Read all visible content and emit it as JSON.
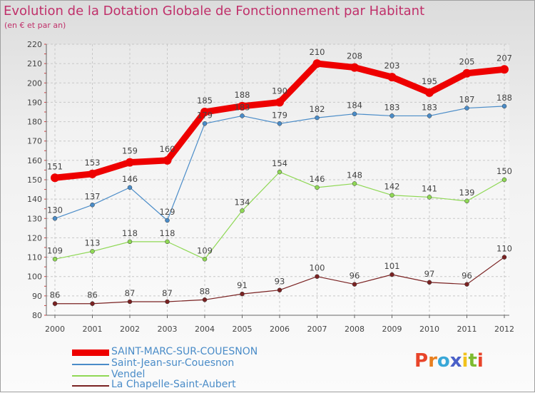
{
  "title": "Evolution de la Dotation Globale de Fonctionnement par Habitant",
  "subtitle": "(en € et par an)",
  "logo": {
    "text": "Proxiti",
    "letter_colors": [
      "#e8442a",
      "#e87f1f",
      "#39a8d8",
      "#4a60c8",
      "#f1c21b",
      "#7dbb2f",
      "#e8442a"
    ]
  },
  "chart_data": {
    "type": "line",
    "title": "Evolution de la Dotation Globale de Fonctionnement par Habitant",
    "subtitle": "(en € et par an)",
    "xlabel": "",
    "ylabel": "",
    "ylim": [
      80,
      220
    ],
    "yticks": [
      80,
      90,
      100,
      110,
      120,
      130,
      140,
      150,
      160,
      170,
      180,
      190,
      200,
      210,
      220
    ],
    "grid": true,
    "x": [
      "2000",
      "2001",
      "2002",
      "2003",
      "2004",
      "2005",
      "2006",
      "2007",
      "2008",
      "2009",
      "2010",
      "2011",
      "2012"
    ],
    "series": [
      {
        "name": "SAINT-MARC-SUR-COUESNON",
        "color": "#ee0000",
        "values": [
          151,
          153,
          159,
          160,
          185,
          188,
          190,
          210,
          208,
          203,
          195,
          205,
          207
        ]
      },
      {
        "name": "Saint-Jean-sur-Couesnon",
        "color": "#4a8cc8",
        "values": [
          130,
          137,
          146,
          129,
          179,
          183,
          179,
          182,
          184,
          183,
          183,
          187,
          188
        ]
      },
      {
        "name": "Vendel",
        "color": "#8fd855",
        "values": [
          109,
          113,
          118,
          118,
          109,
          134,
          154,
          146,
          148,
          142,
          141,
          139,
          150
        ]
      },
      {
        "name": "La Chapelle-Saint-Aubert",
        "color": "#7a2222",
        "values": [
          86,
          86,
          87,
          87,
          88,
          91,
          93,
          100,
          96,
          101,
          97,
          96,
          110
        ]
      }
    ]
  }
}
